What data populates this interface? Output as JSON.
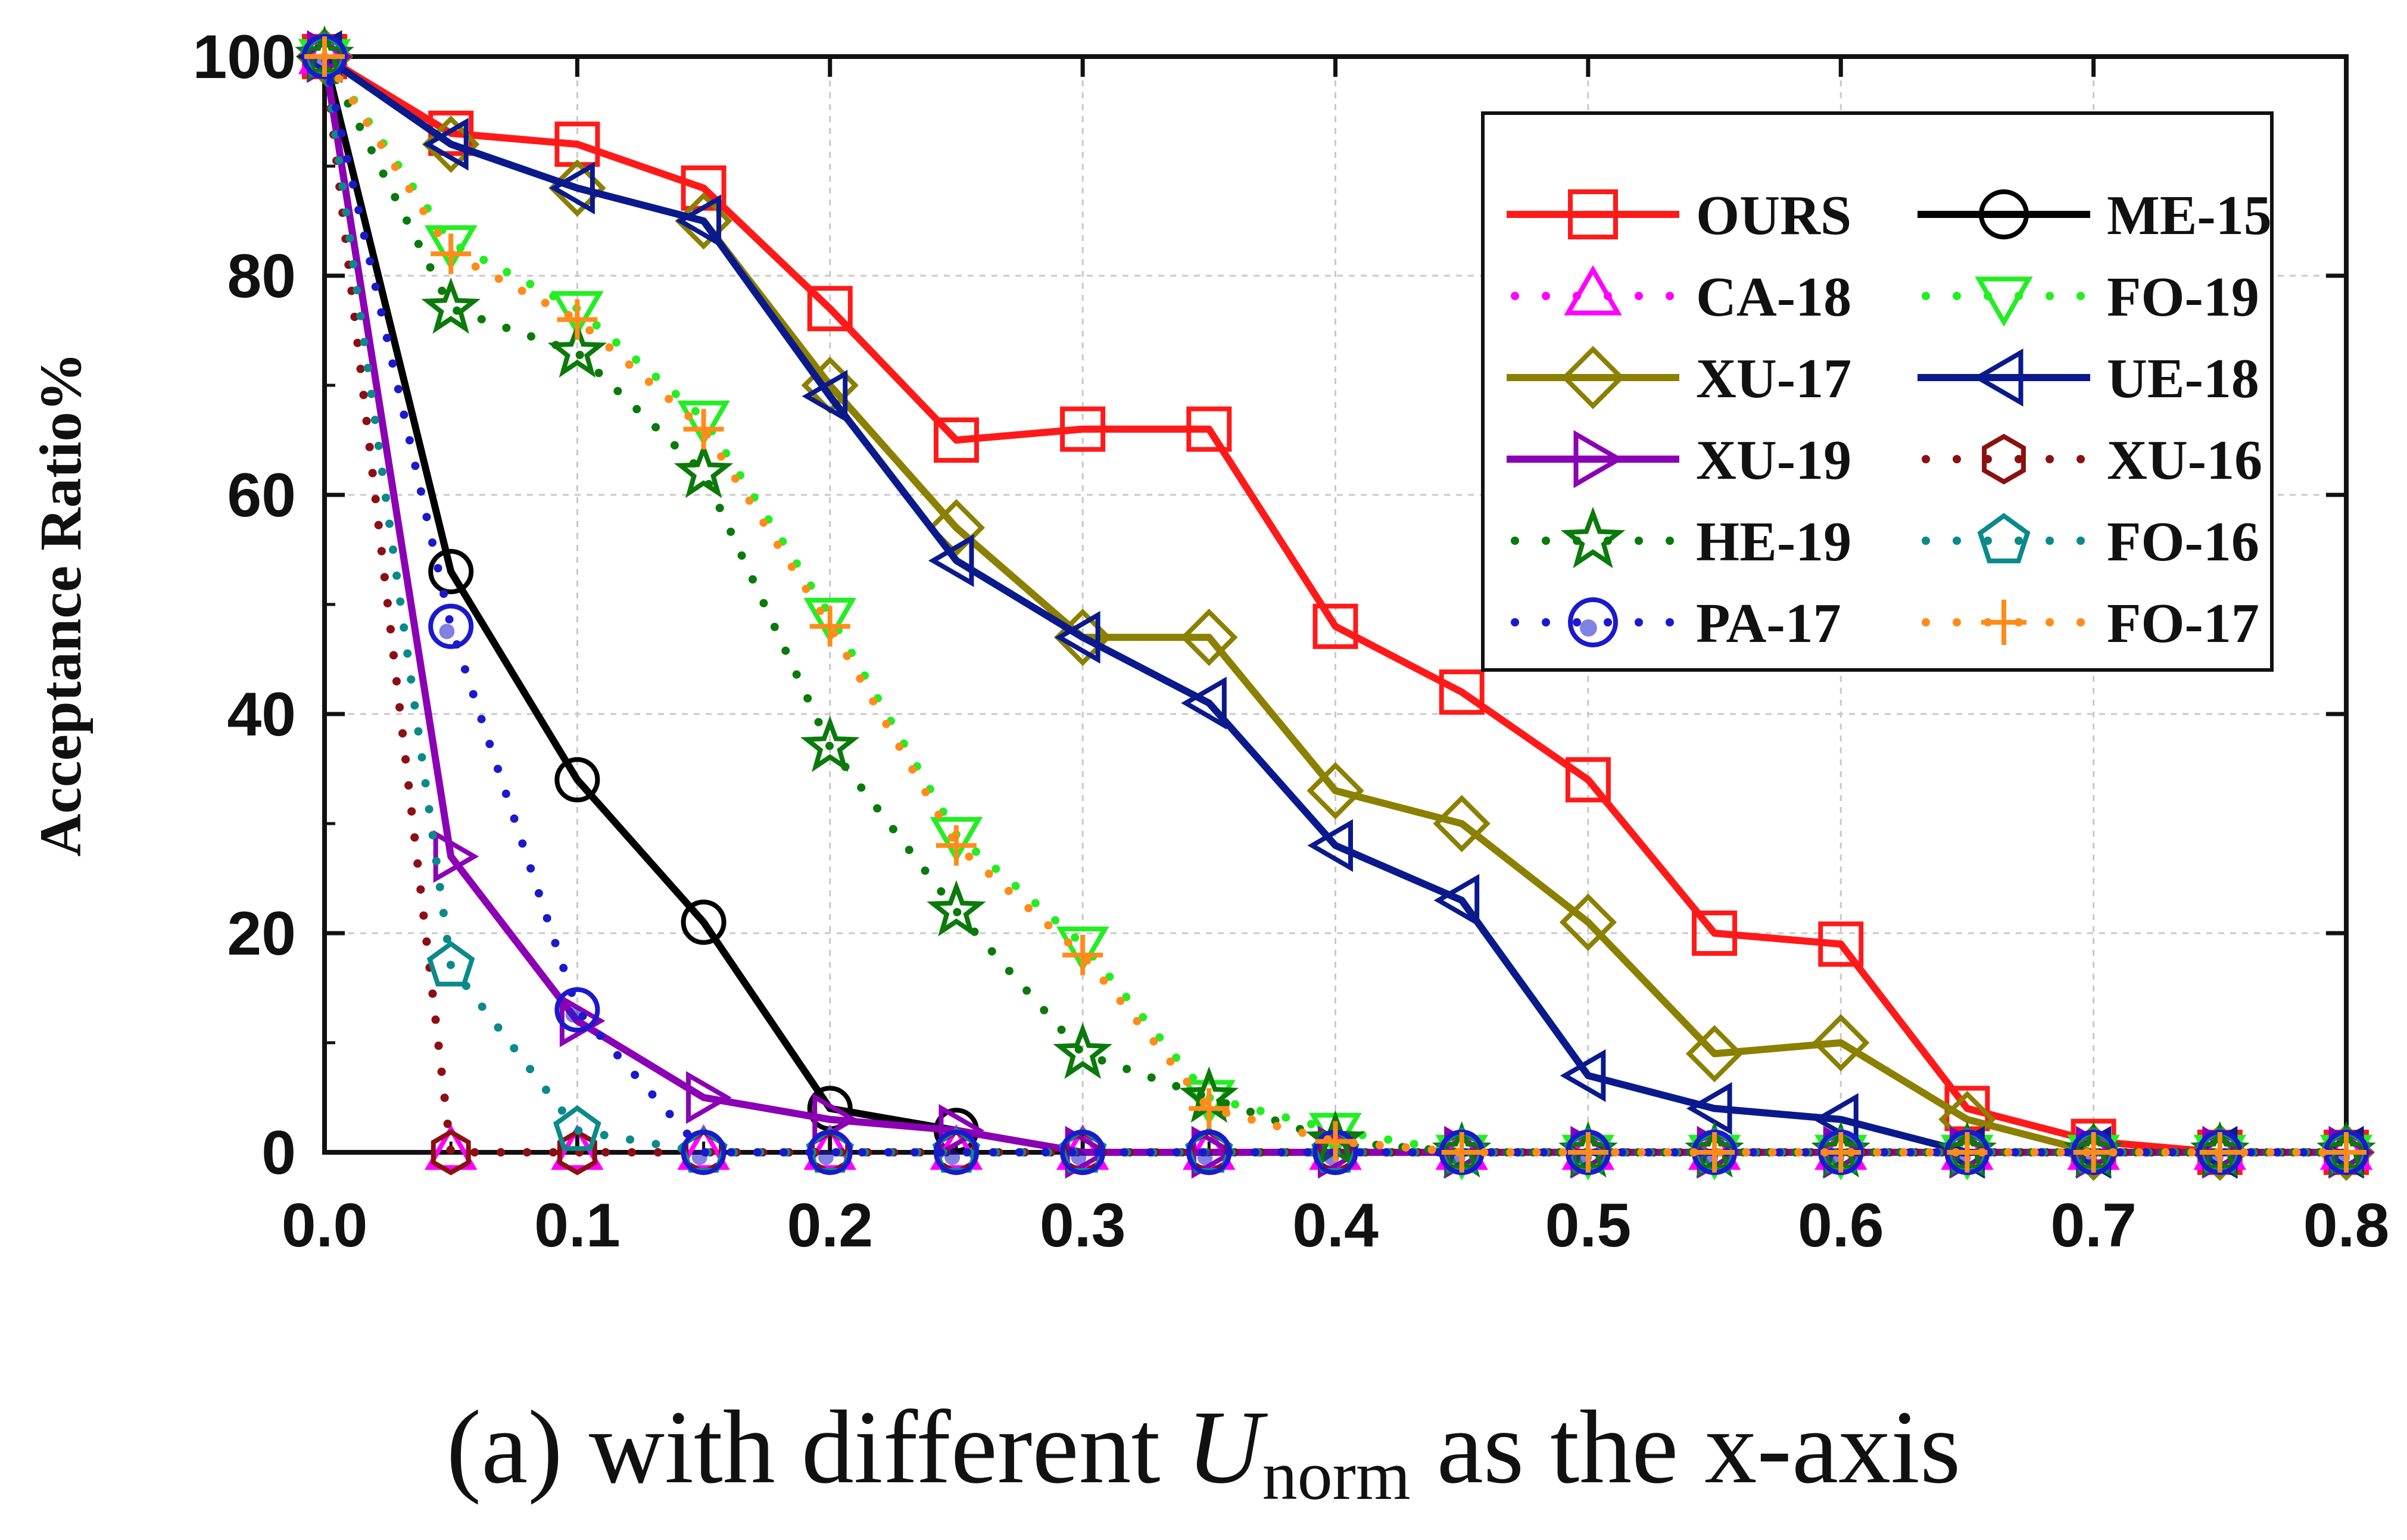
{
  "chart_data": {
    "type": "line",
    "title": "",
    "xlabel": "",
    "ylabel": "Acceptance Ratio%",
    "xlim": [
      0,
      0.8
    ],
    "ylim": [
      0,
      100
    ],
    "x_ticks": [
      "0.0",
      "0.1",
      "0.2",
      "0.3",
      "0.4",
      "0.5",
      "0.6",
      "0.7",
      "0.8"
    ],
    "y_ticks": [
      "0",
      "20",
      "40",
      "60",
      "80",
      "100"
    ],
    "grid": true,
    "legend_position": "top-right",
    "x": [
      0.0,
      0.05,
      0.1,
      0.15,
      0.2,
      0.25,
      0.3,
      0.35,
      0.4,
      0.45,
      0.5,
      0.55,
      0.6,
      0.65,
      0.7,
      0.75,
      0.8
    ],
    "series": [
      {
        "name": "OURS",
        "color": "#ff1a1a",
        "marker": "square",
        "style": "solid",
        "values": [
          100,
          93,
          92,
          88,
          77,
          65,
          66,
          66,
          48,
          42,
          34,
          20,
          19,
          4,
          1,
          0,
          0
        ]
      },
      {
        "name": "ME-15",
        "color": "#000000",
        "marker": "circle",
        "style": "solid",
        "values": [
          100,
          53,
          34,
          21,
          4,
          2,
          0,
          0,
          0,
          0,
          0,
          0,
          0,
          0,
          0,
          0,
          0
        ]
      },
      {
        "name": "CA-18",
        "color": "#ff00ff",
        "marker": "triangle-up",
        "style": "dotted",
        "values": [
          100,
          0,
          0,
          0,
          0,
          0,
          0,
          0,
          0,
          0,
          0,
          0,
          0,
          0,
          0,
          0,
          0
        ]
      },
      {
        "name": "FO-19",
        "color": "#22ee22",
        "marker": "triangle-down",
        "style": "dotted",
        "values": [
          100,
          83,
          77,
          67,
          49,
          29,
          19,
          5,
          2,
          0,
          0,
          0,
          0,
          0,
          0,
          0,
          0
        ]
      },
      {
        "name": "XU-17",
        "color": "#8b8000",
        "marker": "diamond",
        "style": "solid",
        "values": [
          100,
          92,
          88,
          85,
          70,
          57,
          47,
          47,
          33,
          30,
          21,
          9,
          10,
          3,
          0,
          0,
          0
        ]
      },
      {
        "name": "UE-18",
        "color": "#0a1a8c",
        "marker": "triangle-left",
        "style": "solid",
        "values": [
          100,
          92,
          88,
          85,
          69,
          54,
          47,
          41,
          28,
          23,
          7,
          4,
          3,
          0,
          0,
          0,
          0
        ]
      },
      {
        "name": "XU-19",
        "color": "#8b00b5",
        "marker": "triangle-right",
        "style": "solid",
        "values": [
          100,
          27,
          12,
          5,
          3,
          2,
          0,
          0,
          0,
          0,
          0,
          0,
          0,
          0,
          0,
          0,
          0
        ]
      },
      {
        "name": "XU-16",
        "color": "#8b1010",
        "marker": "hexagon",
        "style": "dotted",
        "values": [
          100,
          0,
          0,
          0,
          0,
          0,
          0,
          0,
          0,
          0,
          0,
          0,
          0,
          0,
          0,
          0,
          0
        ]
      },
      {
        "name": "HE-19",
        "color": "#0a7a0a",
        "marker": "star",
        "style": "dotted",
        "values": [
          100,
          77,
          73,
          62,
          37,
          22,
          9,
          5,
          1,
          0,
          0,
          0,
          0,
          0,
          0,
          0,
          0
        ]
      },
      {
        "name": "FO-16",
        "color": "#0a8a8a",
        "marker": "pentagon",
        "style": "dotted",
        "values": [
          100,
          17,
          2,
          0,
          0,
          0,
          0,
          0,
          0,
          0,
          0,
          0,
          0,
          0,
          0,
          0,
          0
        ]
      },
      {
        "name": "PA-17",
        "color": "#1a1acc",
        "marker": "circle-dot",
        "style": "dotted",
        "values": [
          100,
          48,
          13,
          0,
          0,
          0,
          0,
          0,
          0,
          0,
          0,
          0,
          0,
          0,
          0,
          0,
          0
        ]
      },
      {
        "name": "FO-17",
        "color": "#ff8c1a",
        "marker": "plus",
        "style": "dotted",
        "values": [
          100,
          82,
          76,
          66,
          48,
          28,
          18,
          4,
          1,
          0,
          0,
          0,
          0,
          0,
          0,
          0,
          0
        ]
      }
    ]
  },
  "caption": {
    "prefix": "(a)  with different ",
    "var": "U",
    "sub": "norm",
    "suffix": " as the x-axis"
  }
}
